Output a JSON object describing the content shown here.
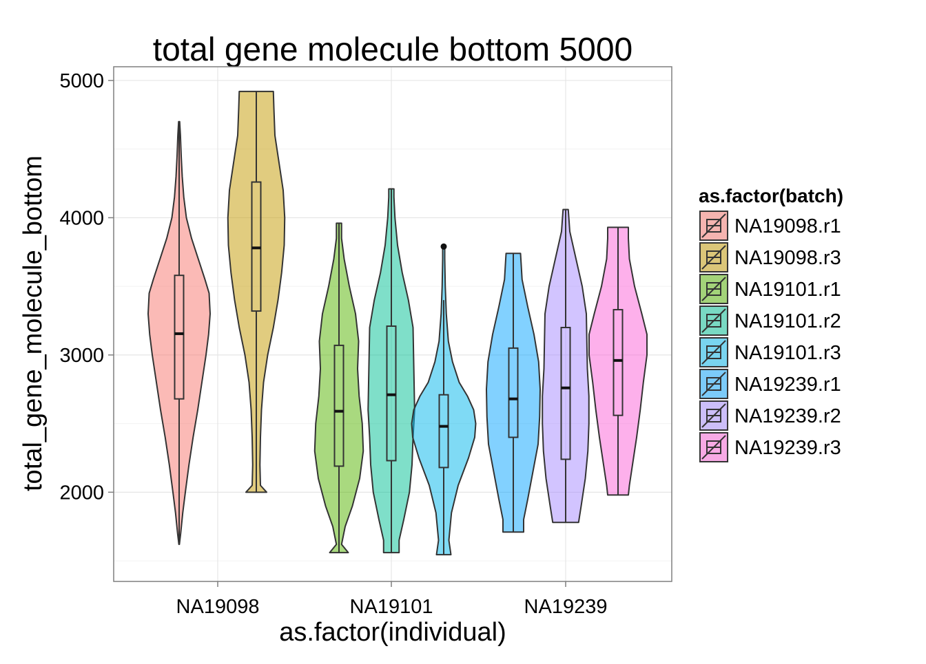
{
  "chart_data": {
    "type": "violin",
    "title": "total gene molecule bottom 5000",
    "xlabel": "as.factor(individual)",
    "ylabel": "total_gene_molecule_bottom",
    "categories": [
      "NA19098",
      "NA19101",
      "NA19239"
    ],
    "y_ticks": [
      2000,
      3000,
      4000,
      5000
    ],
    "ylim": [
      1350,
      5100
    ],
    "grid": true,
    "legend": {
      "title": "as.factor(batch)",
      "position": "right"
    },
    "series": [
      {
        "name": "NA19098.r1",
        "individual": "NA19098",
        "color": "#F8766D",
        "min": 1620,
        "q1": 2680,
        "median": 3155,
        "q3": 3580,
        "max": 4700,
        "outliers": [],
        "density": [
          [
            1620,
            0.005
          ],
          [
            1700,
            0.03
          ],
          [
            1850,
            0.07
          ],
          [
            2000,
            0.12
          ],
          [
            2200,
            0.19
          ],
          [
            2400,
            0.27
          ],
          [
            2600,
            0.36
          ],
          [
            2800,
            0.44
          ],
          [
            3000,
            0.52
          ],
          [
            3150,
            0.57
          ],
          [
            3300,
            0.6
          ],
          [
            3450,
            0.58
          ],
          [
            3550,
            0.5
          ],
          [
            3700,
            0.37
          ],
          [
            3850,
            0.24
          ],
          [
            4000,
            0.14
          ],
          [
            4150,
            0.09
          ],
          [
            4300,
            0.06
          ],
          [
            4450,
            0.04
          ],
          [
            4600,
            0.025
          ],
          [
            4700,
            0.01
          ]
        ]
      },
      {
        "name": "NA19098.r3",
        "individual": "NA19098",
        "color": "#C49A00",
        "min": 2000,
        "q1": 3320,
        "median": 3780,
        "q3": 4260,
        "max": 4920,
        "outliers": [],
        "density": [
          [
            2000,
            0.2
          ],
          [
            2050,
            0.08
          ],
          [
            2200,
            0.07
          ],
          [
            2400,
            0.08
          ],
          [
            2600,
            0.1
          ],
          [
            2800,
            0.14
          ],
          [
            3000,
            0.22
          ],
          [
            3200,
            0.33
          ],
          [
            3400,
            0.42
          ],
          [
            3600,
            0.49
          ],
          [
            3800,
            0.54
          ],
          [
            4000,
            0.55
          ],
          [
            4200,
            0.52
          ],
          [
            4400,
            0.44
          ],
          [
            4600,
            0.36
          ],
          [
            4800,
            0.34
          ],
          [
            4920,
            0.33
          ]
        ]
      },
      {
        "name": "NA19101.r1",
        "individual": "NA19101",
        "color": "#53B400",
        "min": 1560,
        "q1": 2190,
        "median": 2590,
        "q3": 3070,
        "max": 3960,
        "outliers": [],
        "density": [
          [
            1560,
            0.18
          ],
          [
            1620,
            0.05
          ],
          [
            1750,
            0.12
          ],
          [
            1900,
            0.26
          ],
          [
            2100,
            0.4
          ],
          [
            2300,
            0.47
          ],
          [
            2500,
            0.45
          ],
          [
            2700,
            0.39
          ],
          [
            2900,
            0.36
          ],
          [
            3100,
            0.38
          ],
          [
            3300,
            0.32
          ],
          [
            3500,
            0.2
          ],
          [
            3700,
            0.1
          ],
          [
            3850,
            0.05
          ],
          [
            3960,
            0.05
          ]
        ]
      },
      {
        "name": "NA19101.r2",
        "individual": "NA19101",
        "color": "#00C094",
        "min": 1560,
        "q1": 2230,
        "median": 2710,
        "q3": 3210,
        "max": 4210,
        "outliers": [],
        "density": [
          [
            1560,
            0.15
          ],
          [
            1650,
            0.15
          ],
          [
            1800,
            0.24
          ],
          [
            2000,
            0.35
          ],
          [
            2200,
            0.4
          ],
          [
            2400,
            0.42
          ],
          [
            2600,
            0.45
          ],
          [
            2800,
            0.44
          ],
          [
            3000,
            0.43
          ],
          [
            3200,
            0.42
          ],
          [
            3400,
            0.33
          ],
          [
            3600,
            0.21
          ],
          [
            3800,
            0.12
          ],
          [
            4000,
            0.07
          ],
          [
            4150,
            0.05
          ],
          [
            4210,
            0.05
          ]
        ]
      },
      {
        "name": "NA19101.r3",
        "individual": "NA19101",
        "color": "#00B6EB",
        "min": 1545,
        "q1": 2180,
        "median": 2480,
        "q3": 2710,
        "max": 3400,
        "outliers": [
          3790
        ],
        "density": [
          [
            1545,
            0.14
          ],
          [
            1650,
            0.1
          ],
          [
            1850,
            0.15
          ],
          [
            2050,
            0.28
          ],
          [
            2250,
            0.48
          ],
          [
            2400,
            0.6
          ],
          [
            2500,
            0.62
          ],
          [
            2600,
            0.58
          ],
          [
            2700,
            0.46
          ],
          [
            2800,
            0.3
          ],
          [
            2950,
            0.17
          ],
          [
            3100,
            0.09
          ],
          [
            3300,
            0.05
          ],
          [
            3500,
            0.03
          ],
          [
            3700,
            0.02
          ],
          [
            3790,
            0.02
          ]
        ]
      },
      {
        "name": "NA19239.r1",
        "individual": "NA19239",
        "color": "#06A4FF",
        "min": 1710,
        "q1": 2400,
        "median": 2680,
        "q3": 3050,
        "max": 3740,
        "outliers": [],
        "density": [
          [
            1710,
            0.2
          ],
          [
            1800,
            0.2
          ],
          [
            1950,
            0.28
          ],
          [
            2150,
            0.38
          ],
          [
            2350,
            0.48
          ],
          [
            2550,
            0.51
          ],
          [
            2750,
            0.52
          ],
          [
            2950,
            0.49
          ],
          [
            3150,
            0.4
          ],
          [
            3350,
            0.28
          ],
          [
            3550,
            0.17
          ],
          [
            3740,
            0.14
          ]
        ]
      },
      {
        "name": "NA19239.r2",
        "individual": "NA19239",
        "color": "#A58AFF",
        "min": 1780,
        "q1": 2240,
        "median": 2760,
        "q3": 3200,
        "max": 4060,
        "outliers": [],
        "density": [
          [
            1780,
            0.25
          ],
          [
            1900,
            0.3
          ],
          [
            2100,
            0.38
          ],
          [
            2300,
            0.43
          ],
          [
            2500,
            0.45
          ],
          [
            2700,
            0.45
          ],
          [
            2900,
            0.42
          ],
          [
            3100,
            0.41
          ],
          [
            3300,
            0.4
          ],
          [
            3500,
            0.32
          ],
          [
            3700,
            0.2
          ],
          [
            3900,
            0.08
          ],
          [
            4060,
            0.05
          ]
        ]
      },
      {
        "name": "NA19239.r3",
        "individual": "NA19239",
        "color": "#FB61D7",
        "min": 1980,
        "q1": 2560,
        "median": 2960,
        "q3": 3330,
        "max": 3930,
        "outliers": [],
        "density": [
          [
            1980,
            0.2
          ],
          [
            2050,
            0.22
          ],
          [
            2200,
            0.28
          ],
          [
            2400,
            0.36
          ],
          [
            2600,
            0.43
          ],
          [
            2800,
            0.49
          ],
          [
            3000,
            0.56
          ],
          [
            3150,
            0.56
          ],
          [
            3300,
            0.46
          ],
          [
            3500,
            0.32
          ],
          [
            3700,
            0.22
          ],
          [
            3850,
            0.2
          ],
          [
            3930,
            0.2
          ]
        ]
      }
    ]
  }
}
